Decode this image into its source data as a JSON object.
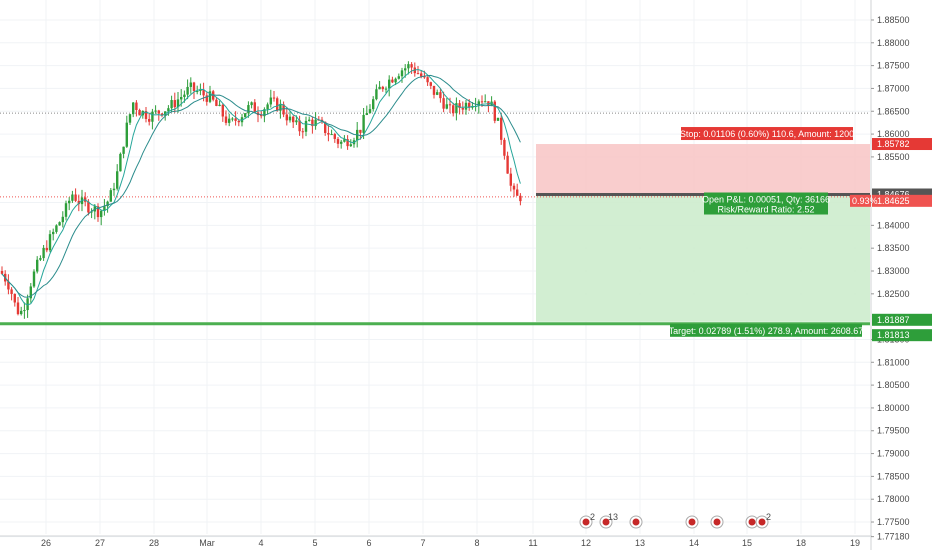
{
  "chart_data": {
    "type": "candlestick",
    "y_axis": {
      "ticks": [
        "1.88500",
        "1.88000",
        "1.87500",
        "1.87000",
        "1.86500",
        "1.86000",
        "1.85500",
        "1.85000",
        "1.84500",
        "1.84000",
        "1.83500",
        "1.83000",
        "1.82500",
        "1.82000",
        "1.81500",
        "1.81000",
        "1.80500",
        "1.80000",
        "1.79500",
        "1.79000",
        "1.78500",
        "1.78000",
        "1.77500",
        "1.77000",
        "1.76500",
        "1.76000",
        "1.75500",
        "1.75000",
        "1.74500",
        "1.74000",
        "1.73500",
        "1.73000",
        "1.72500",
        "1.72000",
        "1.71500",
        "1.71000",
        "1.70500",
        "1.70000",
        "1.69500",
        "1.69000",
        "1.68500",
        "1.68000",
        "1.67500",
        "1.67000",
        "1.66500",
        "1.66000",
        "1.65500",
        "1.65000",
        "1.64500",
        "1.64000",
        "1.63500",
        "1.63000",
        "1.62500",
        "1.62000",
        "1.61500",
        "1.61000",
        "1.60500",
        "1.60000",
        "1.59500",
        "1.59000",
        "1.58500",
        "1.58000",
        "1.57500",
        "1.57000",
        "1.56500",
        "1.56000",
        "1.55500",
        "1.55000",
        "1.54500",
        "1.54000",
        "1.53500",
        "1.53000",
        "1.52500",
        "1.52000",
        "1.51500",
        "1.51000",
        "1.50500",
        "1.50000",
        "1.49500",
        "1.49000",
        "1.48500",
        "1.48000",
        "1.47500",
        "1.47000",
        "1.46500",
        "1.46000",
        "1.45500",
        "1.45000",
        "1.44500",
        "1.44000",
        "1.43500",
        "1.43000",
        "1.42500",
        "1.42000",
        "1.41500",
        "1.41000",
        "1.40500",
        "1.40000",
        "1.39500",
        "1.39000",
        "1.38500",
        "1.38000",
        "1.37500",
        "1.37000",
        "1.36500",
        "1.36000",
        "1.35500",
        "1.35000",
        "1.34500",
        "1.34000",
        "1.33500",
        "1.33000",
        "1.32500",
        "1.32000",
        "1.31500",
        "1.31000",
        "1.30500",
        "1.30000",
        "1.29500",
        "1.29000",
        "1.28500",
        "1.28000",
        "1.27500",
        "1.27000",
        "1.26500",
        "1.26000",
        "1.25500",
        "1.25000",
        "1.24500",
        "1.24000",
        "1.23500",
        "1.23000",
        "1.22500",
        "1.22000",
        "1.21500",
        "1.21000",
        "1.20500",
        "1.20000",
        "1.19500",
        "1.19000",
        "1.18500",
        "1.18000",
        "1.17500",
        "1.17000",
        "1.16500",
        "1.16000",
        "1.15500",
        "1.15000",
        "1.14500",
        "1.14000",
        "1.13500",
        "1.13000",
        "1.12500",
        "1.12000",
        "1.11500",
        "1.11000",
        "1.10500",
        "1.10000",
        "1.09500",
        "1.09000",
        "1.08500",
        "1.08000",
        "1.07500",
        "1.07000",
        "1.06500",
        "1.06000",
        "1.05500",
        "1.05000",
        "1.04500",
        "1.04000",
        "1.03500",
        "1.03000",
        "1.02500",
        "1.02000",
        "1.01500",
        "1.01000",
        "1.00500",
        "1.00000"
      ],
      "visible_ticks": [
        "1.88500",
        "1.88000",
        "1.87500",
        "1.87000",
        "1.86500",
        "1.86000",
        "1.85500",
        "1.84500",
        "1.84000",
        "1.83500",
        "1.83000",
        "1.82500",
        "1.81500",
        "1.81000",
        "1.80500",
        "1.80000",
        "1.79500",
        "1.79000",
        "1.78500",
        "1.78000",
        "1.77500",
        "1.77180"
      ]
    },
    "x_axis": {
      "ticks": [
        "26",
        "27",
        "28",
        "Mar",
        "4",
        "5",
        "6",
        "7",
        "8",
        "11",
        "12",
        "13",
        "14",
        "15",
        "18",
        "19"
      ]
    },
    "price_labels": {
      "stop": "1.85782",
      "current": "1.84676",
      "entry_pct": "0.93%",
      "entry": "1.84625",
      "target": "1.81887",
      "target2": "1.81813"
    },
    "position": {
      "stop_text": "Stop: 0.01106 (0.60%) 110.6, Amount: 1200",
      "pnl_text": "Open P&L: 0.00051, Qty: 36166",
      "rr_text": "Risk/Reward Ratio: 2.52",
      "target_text": "Target: 0.02789 (1.51%) 278.9, Amount: 2608.67"
    },
    "event_badges": [
      "2",
      "13",
      "2"
    ],
    "colors": {
      "up": "#26a69a",
      "up_candle": "#2e9e3a",
      "down": "#e53935",
      "stop_zone": "#f8c8c8",
      "target_zone": "#cdeccd",
      "stop_label_bg": "#e53935",
      "target_label_bg": "#2e9e3a",
      "support_line": "#4caf50",
      "ma_fast": "#26a69a",
      "ma_slow": "#2b8c8c"
    },
    "y_range": [
      1.7715,
      1.8885
    ]
  }
}
